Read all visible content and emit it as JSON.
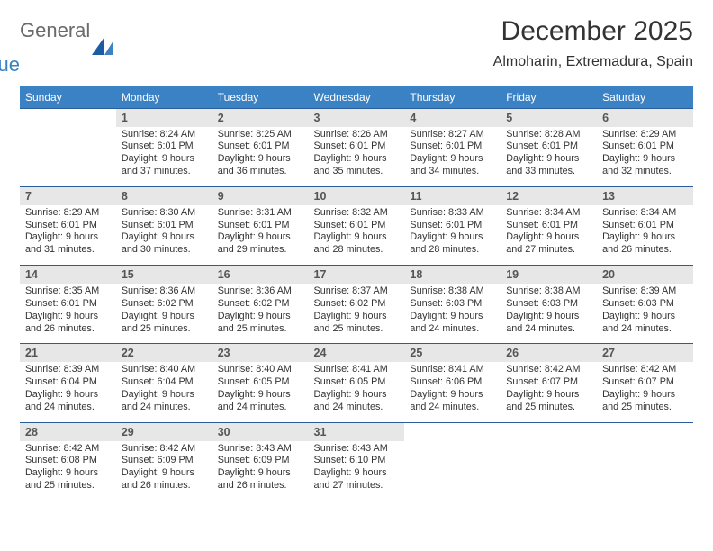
{
  "logo": {
    "part1": "General",
    "part2": "Blue"
  },
  "title": "December 2025",
  "subtitle": "Almoharin, Extremadura, Spain",
  "colors": {
    "header_bg": "#3b82c4",
    "header_text": "#ffffff",
    "daynum_bg": "#e7e7e7",
    "daynum_text": "#555555",
    "body_text": "#333333",
    "logo_gray": "#6a6a6a",
    "logo_blue": "#3b82c4",
    "rule": "#2a5d99"
  },
  "day_names": [
    "Sunday",
    "Monday",
    "Tuesday",
    "Wednesday",
    "Thursday",
    "Friday",
    "Saturday"
  ],
  "weeks": [
    [
      null,
      {
        "n": "1",
        "sr": "8:24 AM",
        "ss": "6:01 PM",
        "dl": "9 hours and 37 minutes."
      },
      {
        "n": "2",
        "sr": "8:25 AM",
        "ss": "6:01 PM",
        "dl": "9 hours and 36 minutes."
      },
      {
        "n": "3",
        "sr": "8:26 AM",
        "ss": "6:01 PM",
        "dl": "9 hours and 35 minutes."
      },
      {
        "n": "4",
        "sr": "8:27 AM",
        "ss": "6:01 PM",
        "dl": "9 hours and 34 minutes."
      },
      {
        "n": "5",
        "sr": "8:28 AM",
        "ss": "6:01 PM",
        "dl": "9 hours and 33 minutes."
      },
      {
        "n": "6",
        "sr": "8:29 AM",
        "ss": "6:01 PM",
        "dl": "9 hours and 32 minutes."
      }
    ],
    [
      {
        "n": "7",
        "sr": "8:29 AM",
        "ss": "6:01 PM",
        "dl": "9 hours and 31 minutes."
      },
      {
        "n": "8",
        "sr": "8:30 AM",
        "ss": "6:01 PM",
        "dl": "9 hours and 30 minutes."
      },
      {
        "n": "9",
        "sr": "8:31 AM",
        "ss": "6:01 PM",
        "dl": "9 hours and 29 minutes."
      },
      {
        "n": "10",
        "sr": "8:32 AM",
        "ss": "6:01 PM",
        "dl": "9 hours and 28 minutes."
      },
      {
        "n": "11",
        "sr": "8:33 AM",
        "ss": "6:01 PM",
        "dl": "9 hours and 28 minutes."
      },
      {
        "n": "12",
        "sr": "8:34 AM",
        "ss": "6:01 PM",
        "dl": "9 hours and 27 minutes."
      },
      {
        "n": "13",
        "sr": "8:34 AM",
        "ss": "6:01 PM",
        "dl": "9 hours and 26 minutes."
      }
    ],
    [
      {
        "n": "14",
        "sr": "8:35 AM",
        "ss": "6:01 PM",
        "dl": "9 hours and 26 minutes."
      },
      {
        "n": "15",
        "sr": "8:36 AM",
        "ss": "6:02 PM",
        "dl": "9 hours and 25 minutes."
      },
      {
        "n": "16",
        "sr": "8:36 AM",
        "ss": "6:02 PM",
        "dl": "9 hours and 25 minutes."
      },
      {
        "n": "17",
        "sr": "8:37 AM",
        "ss": "6:02 PM",
        "dl": "9 hours and 25 minutes."
      },
      {
        "n": "18",
        "sr": "8:38 AM",
        "ss": "6:03 PM",
        "dl": "9 hours and 24 minutes."
      },
      {
        "n": "19",
        "sr": "8:38 AM",
        "ss": "6:03 PM",
        "dl": "9 hours and 24 minutes."
      },
      {
        "n": "20",
        "sr": "8:39 AM",
        "ss": "6:03 PM",
        "dl": "9 hours and 24 minutes."
      }
    ],
    [
      {
        "n": "21",
        "sr": "8:39 AM",
        "ss": "6:04 PM",
        "dl": "9 hours and 24 minutes."
      },
      {
        "n": "22",
        "sr": "8:40 AM",
        "ss": "6:04 PM",
        "dl": "9 hours and 24 minutes."
      },
      {
        "n": "23",
        "sr": "8:40 AM",
        "ss": "6:05 PM",
        "dl": "9 hours and 24 minutes."
      },
      {
        "n": "24",
        "sr": "8:41 AM",
        "ss": "6:05 PM",
        "dl": "9 hours and 24 minutes."
      },
      {
        "n": "25",
        "sr": "8:41 AM",
        "ss": "6:06 PM",
        "dl": "9 hours and 24 minutes."
      },
      {
        "n": "26",
        "sr": "8:42 AM",
        "ss": "6:07 PM",
        "dl": "9 hours and 25 minutes."
      },
      {
        "n": "27",
        "sr": "8:42 AM",
        "ss": "6:07 PM",
        "dl": "9 hours and 25 minutes."
      }
    ],
    [
      {
        "n": "28",
        "sr": "8:42 AM",
        "ss": "6:08 PM",
        "dl": "9 hours and 25 minutes."
      },
      {
        "n": "29",
        "sr": "8:42 AM",
        "ss": "6:09 PM",
        "dl": "9 hours and 26 minutes."
      },
      {
        "n": "30",
        "sr": "8:43 AM",
        "ss": "6:09 PM",
        "dl": "9 hours and 26 minutes."
      },
      {
        "n": "31",
        "sr": "8:43 AM",
        "ss": "6:10 PM",
        "dl": "9 hours and 27 minutes."
      },
      null,
      null,
      null
    ]
  ]
}
